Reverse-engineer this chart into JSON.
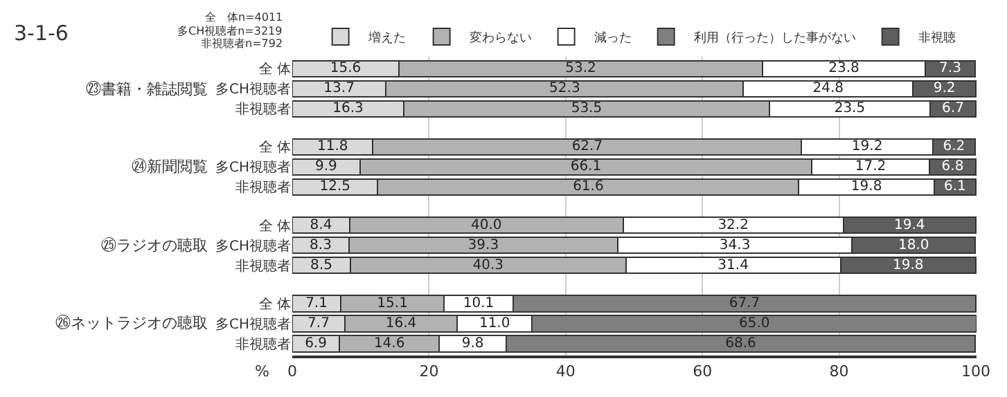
{
  "chart_data": {
    "type": "bar",
    "orientation": "horizontal",
    "stacked": true,
    "title": "3-1-6",
    "xlabel": "%",
    "categories": [
      "全 体",
      "多CH視聴者",
      "非視聴者",
      "全 体",
      "多CH視聴者",
      "非視聴者",
      "全 体",
      "多CH視聴者",
      "非視聴者",
      "全 体",
      "多CH視聴者",
      "非視聴者"
    ],
    "series": [
      {
        "name": "増えた",
        "color": "#d9d9d9",
        "values": [
          15.6,
          13.7,
          16.3,
          11.8,
          9.9,
          12.5,
          8.4,
          8.3,
          8.5,
          7.1,
          7.7,
          6.9
        ],
        "value_labels": [
          "15.6",
          "13.7",
          "16.3",
          "11.8",
          "9.9",
          "12.5",
          "8.4",
          "8.3",
          "8.5",
          "7.1",
          "7.7",
          "6.9"
        ]
      },
      {
        "name": "変わらない",
        "color": "#b2b2b2",
        "values": [
          53.2,
          52.3,
          53.5,
          62.7,
          66.1,
          61.6,
          40.0,
          39.3,
          40.3,
          15.1,
          16.4,
          14.6
        ],
        "value_labels": [
          "53.2",
          "52.3",
          "53.5",
          "62.7",
          "66.1",
          "61.6",
          "40.0",
          "39.3",
          "40.3",
          "15.1",
          "16.4",
          "14.6"
        ]
      },
      {
        "name": "減った",
        "color": "#ffffff",
        "values": [
          23.8,
          24.8,
          23.5,
          19.2,
          17.2,
          19.8,
          32.2,
          34.3,
          31.4,
          10.1,
          11.0,
          9.8
        ],
        "value_labels": [
          "23.8",
          "24.8",
          "23.5",
          "19.2",
          "17.2",
          "19.8",
          "32.2",
          "34.3",
          "31.4",
          "10.1",
          "11.0",
          "9.8"
        ]
      },
      {
        "name": "利用（行った）した事がない",
        "color": "#808080",
        "values": [
          null,
          null,
          null,
          null,
          null,
          null,
          null,
          null,
          null,
          67.7,
          65.0,
          68.6
        ],
        "value_labels": [
          null,
          null,
          null,
          null,
          null,
          null,
          null,
          null,
          null,
          "67.7",
          "65.0",
          "68.6"
        ]
      },
      {
        "name": "非視聴",
        "color": "#5e5e5e",
        "values": [
          7.3,
          9.2,
          6.7,
          6.2,
          6.8,
          6.1,
          19.4,
          18.0,
          19.8,
          null,
          null,
          null
        ],
        "value_labels": [
          "7.3",
          "9.2",
          "6.7",
          "6.2",
          "6.8",
          "6.1",
          "19.4",
          "18.0",
          "19.8",
          null,
          null,
          null
        ]
      }
    ],
    "annotations": [
      "㉓書籍・雑誌閲覧",
      "㉔新聞閲覧",
      "㉕ラジオの聴取",
      "㉖ネットラジオの聴取",
      "全　体n=4011",
      "多CH視聴者n=3219",
      "非視聴者n=792"
    ],
    "xlim": [
      0,
      100.1
    ],
    "xticks": [
      0,
      20,
      40,
      60,
      80,
      100
    ],
    "grid": "x",
    "legend": "top"
  }
}
